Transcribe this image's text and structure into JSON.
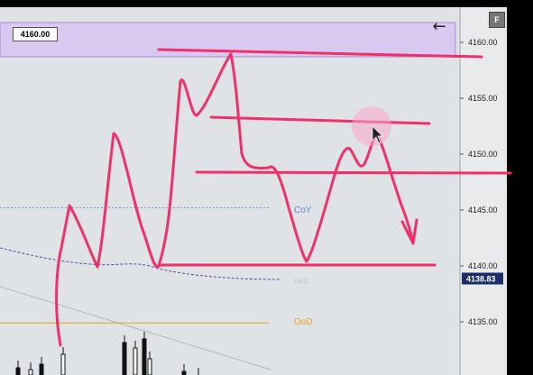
{
  "chart_data": {
    "type": "line",
    "price_axis": {
      "ticks": [
        "4160.00",
        "4155.00",
        "4150.00",
        "4145.00",
        "4140.00",
        "4135.00"
      ],
      "ylim": [
        4132,
        4163
      ],
      "current_price": "4138.83"
    },
    "highlight_box_label": "4160.00",
    "level_labels": [
      {
        "text": "CoY",
        "price": 4145.0,
        "color": "#6a7fd6"
      },
      {
        "text": "OoD",
        "price": 4135.0,
        "color": "#e8a020"
      }
    ],
    "faded_label": "Hi/0"
  },
  "controls": {
    "back_arrow": "←",
    "f_button": "F"
  },
  "colors": {
    "drawing": "#f0306a",
    "highlight_band": "#d9c8f0",
    "chart_bg": "#dfe3e6",
    "axis_bg": "#e9eaec"
  }
}
